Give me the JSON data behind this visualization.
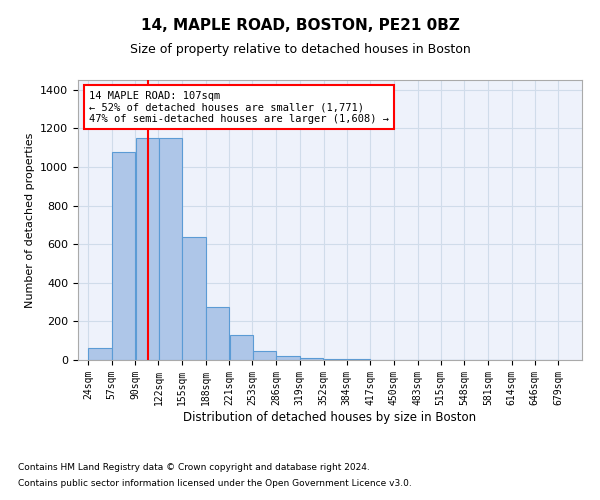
{
  "title1": "14, MAPLE ROAD, BOSTON, PE21 0BZ",
  "title2": "Size of property relative to detached houses in Boston",
  "xlabel": "Distribution of detached houses by size in Boston",
  "ylabel": "Number of detached properties",
  "annotation_line1": "14 MAPLE ROAD: 107sqm",
  "annotation_line2": "← 52% of detached houses are smaller (1,771)",
  "annotation_line3": "47% of semi-detached houses are larger (1,608) →",
  "bar_left_edges": [
    24,
    57,
    90,
    122,
    155,
    188,
    221,
    253,
    286,
    319,
    352,
    384,
    417,
    450,
    483,
    515,
    548,
    581,
    614,
    646
  ],
  "bar_widths": [
    33,
    33,
    33,
    33,
    33,
    33,
    33,
    33,
    33,
    33,
    33,
    33,
    33,
    33,
    33,
    33,
    33,
    33,
    33,
    33
  ],
  "bar_heights": [
    60,
    1075,
    1150,
    1150,
    635,
    275,
    130,
    45,
    20,
    8,
    5,
    3,
    2,
    2,
    1,
    1,
    1,
    1,
    1,
    1
  ],
  "xtick_labels": [
    "24sqm",
    "57sqm",
    "90sqm",
    "122sqm",
    "155sqm",
    "188sqm",
    "221sqm",
    "253sqm",
    "286sqm",
    "319sqm",
    "352sqm",
    "384sqm",
    "417sqm",
    "450sqm",
    "483sqm",
    "515sqm",
    "548sqm",
    "581sqm",
    "614sqm",
    "646sqm",
    "679sqm"
  ],
  "xtick_positions": [
    24,
    57,
    90,
    122,
    155,
    188,
    221,
    253,
    286,
    319,
    352,
    384,
    417,
    450,
    483,
    515,
    548,
    581,
    614,
    646,
    679
  ],
  "bar_color": "#aec6e8",
  "bar_edge_color": "#5b9bd5",
  "vline_color": "red",
  "vline_x": 107,
  "ylim": [
    0,
    1450
  ],
  "xlim": [
    10,
    712
  ],
  "grid_color": "#d0dcea",
  "background_color": "#eef2fb",
  "footnote1": "Contains HM Land Registry data © Crown copyright and database right 2024.",
  "footnote2": "Contains public sector information licensed under the Open Government Licence v3.0."
}
